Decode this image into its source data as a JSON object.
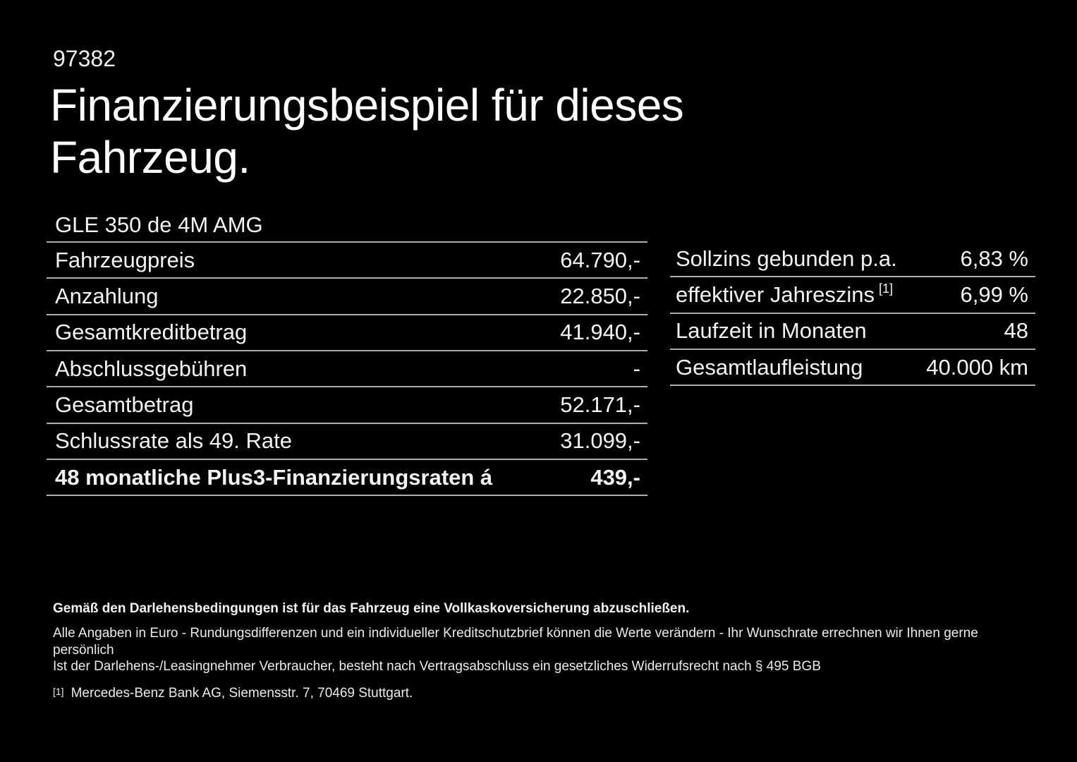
{
  "page": {
    "code": "97382",
    "title_line1": "Finanzierungsbeispiel für dieses",
    "title_line2": "Fahrzeug.",
    "vehicle_model": "GLE 350 de 4M AMG"
  },
  "finance_table": {
    "rows": [
      {
        "label": "Fahrzeugpreis",
        "value": "64.790,-"
      },
      {
        "label": "Anzahlung",
        "value": "22.850,-"
      },
      {
        "label": "Gesamtkreditbetrag",
        "value": "41.940,-"
      },
      {
        "label": "Abschlussgebühren",
        "value": "-"
      },
      {
        "label": "Gesamtbetrag",
        "value": "52.171,-"
      },
      {
        "label": "Schlussrate als 49. Rate",
        "value": "31.099,-"
      },
      {
        "label": "48 monatliche Plus3-Finanzierungsraten á",
        "value": "439,-"
      }
    ]
  },
  "conditions_table": {
    "rows": [
      {
        "label": "Sollzins gebunden p.a.",
        "value": "6,83 %"
      },
      {
        "label": "effektiver Jahreszins",
        "footnote_ref": "[1]",
        "value": "6,99 %"
      },
      {
        "label": "Laufzeit in Monaten",
        "value": "48"
      },
      {
        "label": "Gesamtlaufleistung",
        "value": "40.000 km"
      }
    ]
  },
  "disclaimer": {
    "bold_line": "Gemäß den Darlehensbedingungen ist für das Fahrzeug eine Vollkaskoversicherung abzuschließen.",
    "line1": "Alle Angaben in Euro - Rundungsdifferenzen und ein individueller Kreditschutzbrief können die Werte verändern - Ihr Wunschrate errechnen wir Ihnen gerne persönlich",
    "line2": "Ist der Darlehens-/Leasingnehmer Verbraucher, besteht nach Vertragsabschluss ein gesetzliches Widerrufsrecht nach § 495 BGB",
    "footnote_marker": "[1]",
    "footnote_text": "Mercedes-Benz Bank AG, Siemensstr. 7, 70469 Stuttgart."
  },
  "colors": {
    "background": "#000000",
    "text": "#f4f4f4",
    "divider": "#acacac"
  }
}
